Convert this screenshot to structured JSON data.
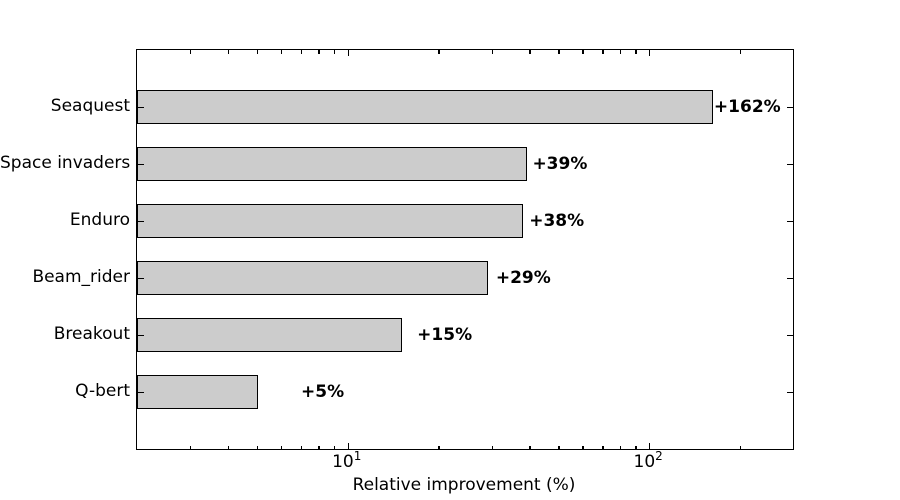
{
  "chart_data": {
    "type": "bar",
    "orientation": "horizontal",
    "title": "",
    "xlabel": "Relative improvement (%)",
    "ylabel": "",
    "x_scale": "log",
    "xlim": [
      2,
      300
    ],
    "categories": [
      "Seaquest",
      "Space invaders",
      "Enduro",
      "Beam_rider",
      "Breakout",
      "Q-bert"
    ],
    "values": [
      162,
      39,
      38,
      29,
      15,
      5
    ],
    "bar_labels": [
      "+162%",
      "+39%",
      "+38%",
      "+29%",
      "+15%",
      "+5%"
    ],
    "bar_label_data_offset": 2,
    "x_major_ticks": [
      {
        "value": 10,
        "base": "10",
        "exponent": "1"
      },
      {
        "value": 100,
        "base": "10",
        "exponent": "2"
      }
    ],
    "x_minor_ticks": [
      3,
      4,
      5,
      6,
      7,
      8,
      9,
      20,
      30,
      40,
      50,
      60,
      70,
      80,
      90,
      200,
      300
    ],
    "grid": false,
    "legend": null,
    "bar_color": "#cccccc",
    "bar_edge_color": "#000000",
    "text_color": "#000000",
    "background_color": "#ffffff"
  }
}
